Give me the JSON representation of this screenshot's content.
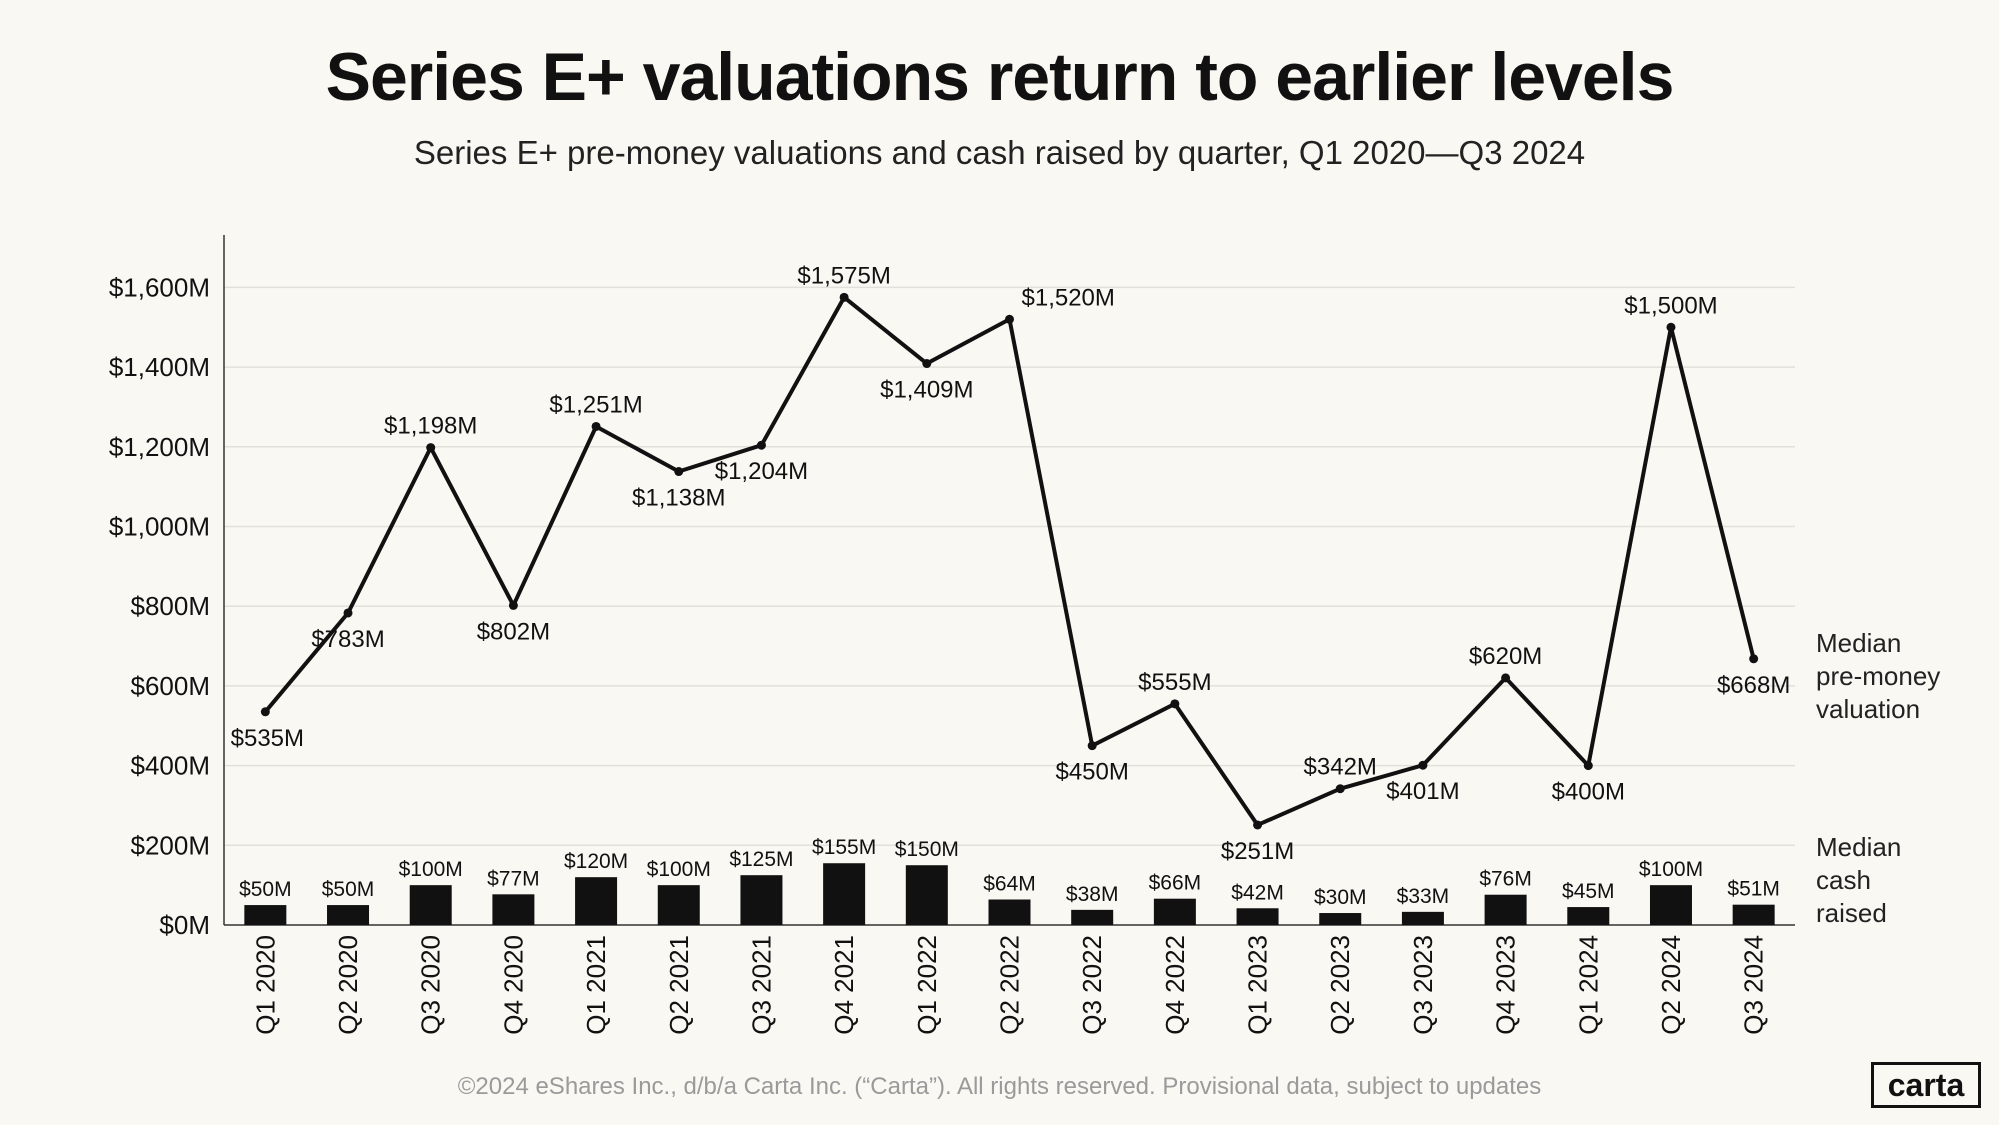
{
  "title": "Series E+ valuations return to earlier levels",
  "subtitle": "Series E+ pre-money valuations and cash raised by quarter, Q1 2020—Q3 2024",
  "footer": "©2024 eShares Inc., d/b/a Carta Inc. (“Carta”). All rights reserved. Provisional data, subject to updates",
  "logo": "carta",
  "legend": {
    "valuation": [
      "Median",
      "pre-money",
      "valuation"
    ],
    "cash": [
      "Median",
      "cash",
      "raised"
    ]
  },
  "colors": {
    "background": "#faf8f3",
    "series": "#111111",
    "grid": "#e2e0da",
    "axis": "#333333",
    "footer": "#9a9a9a"
  },
  "chart_data": {
    "type": "line+bar",
    "categories": [
      "Q1 2020",
      "Q2 2020",
      "Q3 2020",
      "Q4 2020",
      "Q1 2021",
      "Q2 2021",
      "Q3 2021",
      "Q4 2021",
      "Q1 2022",
      "Q2 2022",
      "Q3 2022",
      "Q4 2022",
      "Q1 2023",
      "Q2 2023",
      "Q3 2023",
      "Q4 2023",
      "Q1 2024",
      "Q2 2024",
      "Q3 2024"
    ],
    "ylim": [
      0,
      1700
    ],
    "yticks": [
      0,
      200,
      400,
      600,
      800,
      1000,
      1200,
      1400,
      1600
    ],
    "ytick_labels": [
      "$0M",
      "$200M",
      "$400M",
      "$600M",
      "$800M",
      "$1,000M",
      "$1,200M",
      "$1,400M",
      "$1,600M"
    ],
    "grid": true,
    "series": [
      {
        "name": "Median pre-money valuation",
        "type": "line",
        "values": [
          535,
          783,
          1198,
          802,
          1251,
          1138,
          1204,
          1575,
          1409,
          1520,
          450,
          555,
          251,
          342,
          401,
          620,
          400,
          1500,
          668
        ],
        "labels": [
          "$535M",
          "$783M",
          "$1,198M",
          "$802M",
          "$1,251M",
          "$1,138M",
          "$1,204M",
          "$1,575M",
          "$1,409M",
          "$1,520M",
          "$450M",
          "$555M",
          "$251M",
          "$342M",
          "$401M",
          "$620M",
          "$400M",
          "$1,500M",
          "$668M"
        ],
        "label_pos": [
          "below",
          "below",
          "above",
          "below",
          "above",
          "below",
          "below",
          "above",
          "below",
          "right",
          "below",
          "above",
          "below",
          "above",
          "below",
          "above",
          "below",
          "above",
          "below"
        ]
      },
      {
        "name": "Median cash raised",
        "type": "bar",
        "values": [
          50,
          50,
          100,
          77,
          120,
          100,
          125,
          155,
          150,
          64,
          38,
          66,
          42,
          30,
          33,
          76,
          45,
          100,
          51
        ],
        "labels": [
          "$50M",
          "$50M",
          "$100M",
          "$77M",
          "$120M",
          "$100M",
          "$125M",
          "$155M",
          "$150M",
          "$64M",
          "$38M",
          "$66M",
          "$42M",
          "$30M",
          "$33M",
          "$76M",
          "$45M",
          "$100M",
          "$51M"
        ]
      }
    ]
  }
}
